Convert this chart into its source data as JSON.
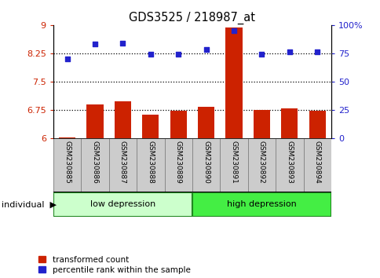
{
  "title": "GDS3525 / 218987_at",
  "samples": [
    "GSM230885",
    "GSM230886",
    "GSM230887",
    "GSM230888",
    "GSM230889",
    "GSM230890",
    "GSM230891",
    "GSM230892",
    "GSM230893",
    "GSM230894"
  ],
  "transformed_count": [
    6.02,
    6.88,
    6.97,
    6.62,
    6.72,
    6.82,
    8.93,
    6.75,
    6.78,
    6.73
  ],
  "percentile_rank": [
    70,
    83,
    84,
    74,
    74,
    78,
    95,
    74,
    76,
    76
  ],
  "ylim_left": [
    6.0,
    9.0
  ],
  "ylim_right": [
    0,
    100
  ],
  "yticks_left": [
    6.0,
    6.75,
    7.5,
    8.25,
    9.0
  ],
  "ytick_labels_left": [
    "6",
    "6.75",
    "7.5",
    "8.25",
    "9"
  ],
  "yticks_right": [
    0,
    25,
    50,
    75,
    100
  ],
  "ytick_labels_right": [
    "0",
    "25",
    "50",
    "75",
    "100%"
  ],
  "hlines": [
    6.75,
    7.5,
    8.25
  ],
  "bar_color": "#cc2200",
  "dot_color": "#2222cc",
  "bar_width": 0.6,
  "low_depression_indices": [
    0,
    1,
    2,
    3,
    4
  ],
  "high_depression_indices": [
    5,
    6,
    7,
    8,
    9
  ],
  "low_depression_color": "#ccffcc",
  "high_depression_color": "#44ee44",
  "group_label_low": "low depression",
  "group_label_high": "high depression",
  "legend_bar_label": "transformed count",
  "legend_dot_label": "percentile rank within the sample",
  "individual_label": "individual",
  "tickbox_color": "#cccccc",
  "tickbox_edge": "#888888",
  "group_edge": "#228822"
}
